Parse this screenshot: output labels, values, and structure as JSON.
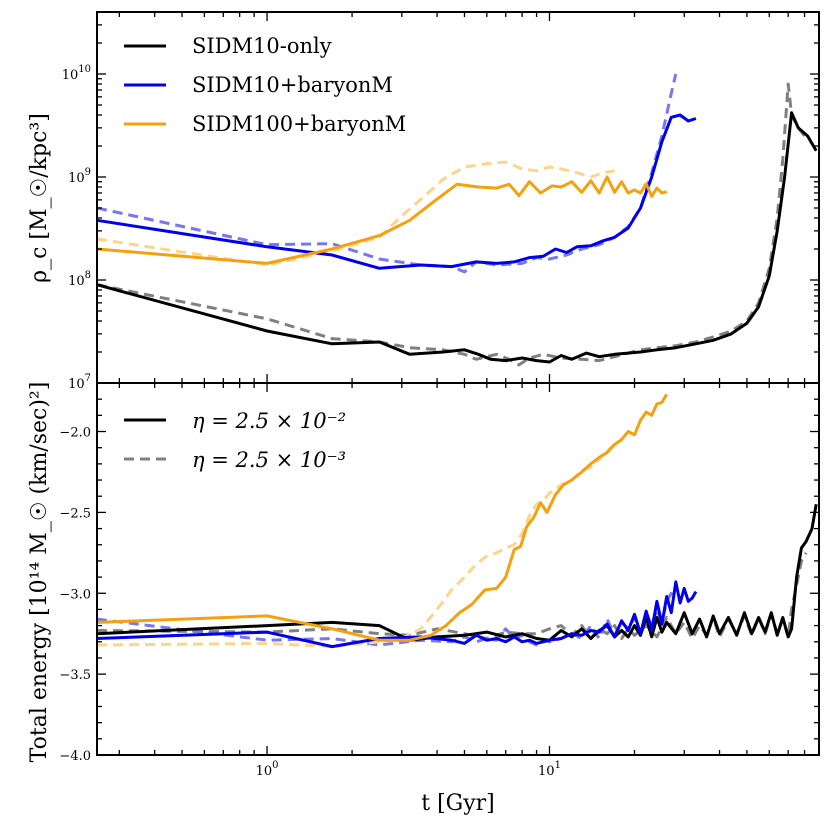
{
  "chart_data": [
    {
      "type": "line",
      "panel": "top",
      "xscale": "log",
      "yscale": "log",
      "xlim": [
        0.25,
        90
      ],
      "ylim": [
        10000000,
        40000000000
      ],
      "ylabel": "ρ_c [M_☉/kpc³]",
      "yticks": [
        {
          "value": 10000000,
          "base": "10",
          "exp": "7"
        },
        {
          "value": 100000000,
          "base": "10",
          "exp": "8"
        },
        {
          "value": 1000000000,
          "base": "10",
          "exp": "9"
        },
        {
          "value": 10000000000,
          "base": "10",
          "exp": "10"
        }
      ],
      "legend": {
        "position": "top-left",
        "entries": [
          "SIDM10-only",
          "SIDM10+baryonM",
          "SIDM100+baryonM"
        ]
      },
      "series": [
        {
          "name": "SIDM10-only",
          "color": "#000000",
          "style": "solid",
          "x": [
            0.25,
            1.0,
            1.7,
            2.5,
            3.2,
            4.2,
            5.0,
            5.6,
            6.2,
            7.0,
            8.0,
            9.0,
            10.0,
            11.0,
            12.0,
            13.5,
            15.0,
            17.0,
            19.0,
            21.0,
            24.0,
            28.0,
            33.0,
            38.0,
            44.0,
            50.0,
            55.0,
            60.0,
            64.0,
            68.0,
            72.0,
            76.0,
            82.0,
            88.0
          ],
          "y": [
            90000000,
            32000000,
            24000000,
            25000000,
            19000000,
            20000000,
            21000000,
            19000000,
            17000000,
            16500000,
            17500000,
            16500000,
            16000000,
            18500000,
            17000000,
            19500000,
            18000000,
            19000000,
            19500000,
            20000000,
            21000000,
            22000000,
            24000000,
            26000000,
            30000000,
            38000000,
            55000000,
            110000000,
            300000000,
            1000000000,
            4200000000,
            3000000000,
            2500000000,
            1800000000
          ]
        },
        {
          "name": "SIDM10-only (η=2.5e-3)",
          "color": "#808080",
          "style": "dashed",
          "x": [
            0.25,
            1.0,
            1.7,
            2.5,
            3.2,
            4.2,
            5.0,
            5.5,
            6.0,
            6.5,
            7.2,
            7.8,
            8.5,
            9.5,
            11.0,
            13.0,
            15.0,
            17.0,
            19.0,
            21.0,
            24.0,
            28.0,
            33.0,
            38.0,
            44.0,
            50.0,
            55.0,
            60.0,
            64.0,
            67.0,
            70.0,
            72.0,
            76.0,
            80.0
          ],
          "y": [
            90000000,
            42000000,
            27000000,
            25000000,
            22000000,
            21000000,
            19000000,
            17000000,
            18000000,
            19000000,
            17000000,
            15000000,
            17500000,
            19000000,
            17500000,
            17000000,
            16500000,
            18000000,
            19500000,
            21000000,
            22000000,
            23000000,
            25000000,
            28000000,
            32000000,
            40000000,
            60000000,
            130000000,
            400000000,
            1500000000,
            8000000000,
            4000000000,
            3000000000,
            2500000000
          ]
        },
        {
          "name": "SIDM10+baryonM",
          "color": "#0000ee",
          "style": "solid",
          "x": [
            0.25,
            1.0,
            1.7,
            2.5,
            3.5,
            4.5,
            5.5,
            6.5,
            7.5,
            8.5,
            9.5,
            10.5,
            11.5,
            12.5,
            14.0,
            15.5,
            17.0,
            19.0,
            21.0,
            23.0,
            25.0,
            27.0,
            29.0,
            31.0,
            33.0
          ],
          "y": [
            380000000,
            210000000,
            175000000,
            130000000,
            140000000,
            135000000,
            150000000,
            145000000,
            150000000,
            165000000,
            170000000,
            200000000,
            185000000,
            210000000,
            215000000,
            240000000,
            260000000,
            320000000,
            500000000,
            1000000000,
            2200000000,
            3800000000,
            4000000000,
            3500000000,
            3700000000
          ]
        },
        {
          "name": "SIDM10+baryonM (η=2.5e-3)",
          "color": "#7777ee",
          "style": "dashed",
          "x": [
            0.25,
            1.0,
            1.7,
            2.5,
            3.5,
            4.5,
            5.0,
            5.5,
            6.5,
            8.0,
            9.0,
            10.0,
            11.5,
            13.0,
            15.0,
            17.0,
            19.0,
            21.0,
            23.0,
            25.0,
            27.0,
            28.0
          ],
          "y": [
            500000000,
            220000000,
            225000000,
            160000000,
            140000000,
            135000000,
            120000000,
            150000000,
            140000000,
            145000000,
            165000000,
            160000000,
            175000000,
            200000000,
            220000000,
            260000000,
            330000000,
            500000000,
            1100000000,
            2500000000,
            6500000000,
            10000000000
          ]
        },
        {
          "name": "SIDM100+baryonM",
          "color": "#f5a10f",
          "style": "solid",
          "x": [
            0.25,
            1.0,
            1.7,
            2.5,
            3.2,
            3.9,
            4.7,
            5.6,
            6.5,
            7.2,
            7.8,
            8.5,
            9.3,
            10.2,
            11.0,
            12.0,
            13.0,
            14.0,
            15.0,
            16.0,
            17.0,
            18.0,
            19.0,
            20.0,
            21.0,
            22.0,
            23.0,
            24.0,
            25.0,
            26.0
          ],
          "y": [
            200000000,
            145000000,
            200000000,
            270000000,
            380000000,
            580000000,
            850000000,
            800000000,
            780000000,
            850000000,
            660000000,
            900000000,
            700000000,
            820000000,
            800000000,
            900000000,
            710000000,
            920000000,
            700000000,
            1000000000,
            710000000,
            900000000,
            700000000,
            750000000,
            700000000,
            860000000,
            650000000,
            780000000,
            700000000,
            720000000
          ]
        },
        {
          "name": "SIDM100+baryonM (η=2.5e-3)",
          "color": "#fcd58a",
          "style": "dashed",
          "x": [
            0.25,
            1.0,
            1.7,
            2.5,
            3.0,
            3.6,
            4.2,
            5.0,
            6.0,
            7.0,
            8.0,
            9.0,
            10.0,
            11.0,
            12.5,
            14.0,
            15.5,
            17.0
          ],
          "y": [
            250000000,
            140000000,
            190000000,
            260000000,
            420000000,
            650000000,
            950000000,
            1250000000,
            1350000000,
            1400000000,
            1200000000,
            1150000000,
            1250000000,
            1200000000,
            1100000000,
            1000000000,
            1100000000,
            1150000000
          ]
        }
      ]
    },
    {
      "type": "line",
      "panel": "bottom",
      "xscale": "log",
      "xlim": [
        0.25,
        90
      ],
      "ylim": [
        -4.0,
        -1.7
      ],
      "xlabel": "t [Gyr]",
      "ylabel": "Total energy [10¹⁴ M_☉ (km/sec)²]",
      "xticks": [
        {
          "value": 1,
          "base": "10",
          "exp": "0"
        },
        {
          "value": 10,
          "base": "10",
          "exp": "1"
        }
      ],
      "yticks": [
        {
          "value": -4.0,
          "label": "−4.0"
        },
        {
          "value": -3.5,
          "label": "−3.5"
        },
        {
          "value": -3.0,
          "label": "−3.0"
        },
        {
          "value": -2.5,
          "label": "−2.5"
        },
        {
          "value": -2.0,
          "label": "−2.0"
        }
      ],
      "legend": {
        "position": "top-left",
        "entries": [
          "η = 2.5 × 10⁻²",
          "η = 2.5 × 10⁻³"
        ]
      },
      "series": [
        {
          "name": "SIDM10-only",
          "color": "#000000",
          "style": "solid",
          "x": [
            0.25,
            1.0,
            1.7,
            2.5,
            3.2,
            4.0,
            5.0,
            6.0,
            7.0,
            8.0,
            9.0,
            10.0,
            11.0,
            12.0,
            13.0,
            14.0,
            15.0,
            16.0,
            17.0,
            18.0,
            19.0,
            20.0,
            21.0,
            22.0,
            23.0,
            24.0,
            25.0,
            26.0,
            28.0,
            30.0,
            32.0,
            34.0,
            36.0,
            38.0,
            40.0,
            43.0,
            46.0,
            49.0,
            52.0,
            55.0,
            58.0,
            61.0,
            64.0,
            67.0,
            70.0,
            72.0,
            75.0,
            78.0,
            81.0,
            85.0,
            88.0
          ],
          "y": [
            -3.25,
            -3.2,
            -3.18,
            -3.2,
            -3.29,
            -3.27,
            -3.26,
            -3.24,
            -3.27,
            -3.25,
            -3.28,
            -3.29,
            -3.23,
            -3.27,
            -3.22,
            -3.28,
            -3.23,
            -3.2,
            -3.27,
            -3.23,
            -3.27,
            -3.2,
            -3.26,
            -3.15,
            -3.27,
            -3.15,
            -3.24,
            -3.18,
            -3.25,
            -3.12,
            -3.25,
            -3.16,
            -3.27,
            -3.14,
            -3.25,
            -3.15,
            -3.26,
            -3.12,
            -3.25,
            -3.15,
            -3.24,
            -3.12,
            -3.26,
            -3.15,
            -3.27,
            -3.22,
            -2.9,
            -2.72,
            -2.68,
            -2.6,
            -2.45
          ]
        },
        {
          "name": "SIDM10-only (η=2.5e-3)",
          "color": "#808080",
          "style": "dashed",
          "x": [
            0.25,
            1.0,
            1.7,
            2.5,
            3.2,
            4.0,
            5.0,
            6.0,
            7.0,
            8.0,
            9.0,
            10.0,
            11.0,
            12.0,
            13.0,
            14.0,
            15.0,
            16.0,
            17.0,
            18.0,
            19.0,
            20.0,
            22.0,
            24.0,
            26.0,
            28.0,
            30.0,
            32.0,
            34.0,
            36.0,
            38.0,
            40.0,
            43.0,
            46.0,
            49.0,
            52.0,
            55.0,
            58.0,
            61.0,
            64.0,
            67.0,
            70.0,
            72.0,
            75.0,
            78.0,
            81.0
          ],
          "y": [
            -3.23,
            -3.24,
            -3.22,
            -3.25,
            -3.26,
            -3.22,
            -3.25,
            -3.28,
            -3.24,
            -3.25,
            -3.25,
            -3.22,
            -3.2,
            -3.26,
            -3.2,
            -3.28,
            -3.22,
            -3.25,
            -3.2,
            -3.28,
            -3.22,
            -3.26,
            -3.2,
            -3.27,
            -3.15,
            -3.25,
            -3.18,
            -3.28,
            -3.2,
            -3.26,
            -3.15,
            -3.27,
            -3.16,
            -3.25,
            -3.14,
            -3.26,
            -3.15,
            -3.25,
            -3.13,
            -3.25,
            -3.16,
            -3.27,
            -3.1,
            -2.95,
            -2.8,
            -2.75
          ]
        },
        {
          "name": "SIDM10+baryonM",
          "color": "#0000ee",
          "style": "solid",
          "x": [
            0.25,
            1.0,
            1.7,
            2.5,
            3.5,
            4.5,
            5.0,
            5.5,
            6.0,
            6.5,
            7.0,
            7.5,
            8.0,
            8.5,
            9.0,
            9.5,
            10.0,
            11.0,
            12.0,
            13.0,
            14.0,
            15.0,
            16.0,
            17.0,
            18.0,
            19.0,
            20.0,
            21.0,
            22.0,
            23.0,
            24.0,
            25.0,
            26.0,
            27.0,
            28.0,
            29.0,
            30.0,
            31.0,
            32.0,
            33.0
          ],
          "y": [
            -3.28,
            -3.24,
            -3.33,
            -3.28,
            -3.27,
            -3.29,
            -3.31,
            -3.26,
            -3.29,
            -3.28,
            -3.3,
            -3.27,
            -3.3,
            -3.29,
            -3.31,
            -3.3,
            -3.29,
            -3.28,
            -3.25,
            -3.26,
            -3.23,
            -3.24,
            -3.19,
            -3.27,
            -3.17,
            -3.23,
            -3.13,
            -3.25,
            -3.11,
            -3.23,
            -3.05,
            -3.19,
            -3.02,
            -3.12,
            -2.93,
            -3.06,
            -2.97,
            -3.05,
            -3.03,
            -2.99
          ]
        },
        {
          "name": "SIDM10+baryonM (η=2.5e-3)",
          "color": "#7777ee",
          "style": "dashed",
          "x": [
            0.25,
            1.0,
            1.7,
            2.5,
            3.5,
            4.5,
            5.0,
            5.5,
            6.0,
            6.5,
            7.0,
            7.5,
            8.0,
            8.5,
            9.0,
            9.5,
            10.0,
            11.0,
            12.0,
            13.0,
            14.0,
            15.0,
            16.0,
            17.0,
            18.0,
            19.0,
            20.0,
            21.0,
            22.0,
            23.0,
            24.0,
            25.0,
            26.0,
            27.0,
            28.0
          ],
          "y": [
            -3.16,
            -3.29,
            -3.28,
            -3.32,
            -3.29,
            -3.3,
            -3.27,
            -3.3,
            -3.28,
            -3.29,
            -3.22,
            -3.28,
            -3.26,
            -3.3,
            -3.32,
            -3.29,
            -3.3,
            -3.28,
            -3.25,
            -3.28,
            -3.2,
            -3.28,
            -3.16,
            -3.26,
            -3.18,
            -3.22,
            -3.15,
            -3.25,
            -3.12,
            -3.2,
            -3.1,
            -3.18,
            -3.05,
            -3.0,
            -2.97
          ]
        },
        {
          "name": "SIDM100+baryonM",
          "color": "#f5a10f",
          "style": "solid",
          "x": [
            0.25,
            1.0,
            1.7,
            2.5,
            3.2,
            3.8,
            4.3,
            4.8,
            5.3,
            5.9,
            6.5,
            7.0,
            7.5,
            7.9,
            8.3,
            8.8,
            9.3,
            9.8,
            10.5,
            11.2,
            12.0,
            13.0,
            14.0,
            15.0,
            16.0,
            17.0,
            18.0,
            19.0,
            20.0,
            21.0,
            22.0,
            23.0,
            24.0,
            25.0,
            26.0
          ],
          "y": [
            -3.18,
            -3.14,
            -3.22,
            -3.29,
            -3.29,
            -3.26,
            -3.2,
            -3.12,
            -3.07,
            -2.98,
            -2.97,
            -2.9,
            -2.73,
            -2.71,
            -2.59,
            -2.53,
            -2.44,
            -2.5,
            -2.39,
            -2.33,
            -2.3,
            -2.25,
            -2.2,
            -2.16,
            -2.13,
            -2.08,
            -2.05,
            -2.0,
            -2.02,
            -1.93,
            -1.88,
            -1.9,
            -1.83,
            -1.82,
            -1.77
          ]
        },
        {
          "name": "SIDM100+baryonM (η=2.5e-3)",
          "color": "#fcd58a",
          "style": "dashed",
          "x": [
            0.25,
            1.0,
            1.7,
            2.5,
            3.0,
            3.5,
            4.0,
            4.5,
            5.0,
            5.5,
            6.0,
            6.5,
            7.0,
            7.5,
            8.0,
            8.5,
            9.0,
            9.5,
            10.0,
            11.0,
            12.0,
            13.0,
            14.0,
            15.0,
            16.0,
            17.0
          ],
          "y": [
            -3.32,
            -3.31,
            -3.33,
            -3.3,
            -3.28,
            -3.22,
            -3.1,
            -2.98,
            -2.9,
            -2.82,
            -2.77,
            -2.75,
            -2.72,
            -2.7,
            -2.63,
            -2.52,
            -2.45,
            -2.43,
            -2.38,
            -2.33,
            -2.3,
            -2.24,
            -2.22,
            -2.17,
            -2.12,
            -2.08
          ]
        }
      ]
    }
  ]
}
